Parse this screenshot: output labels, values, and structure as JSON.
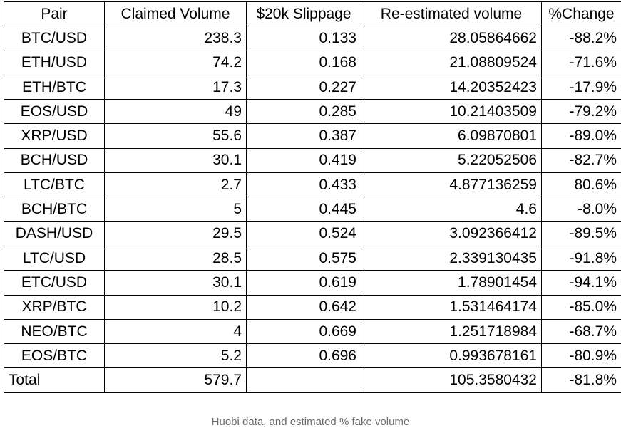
{
  "table": {
    "headers": [
      "Pair",
      "Claimed Volume",
      "$20k Slippage",
      "Re-estimated volume",
      "%Change"
    ],
    "rows": [
      {
        "pair": "BTC/USD",
        "claimed": "238.3",
        "slippage": "0.133",
        "reestimated": "28.05864662",
        "change": "-88.2%",
        "change_sign": "neg"
      },
      {
        "pair": "ETH/USD",
        "claimed": "74.2",
        "slippage": "0.168",
        "reestimated": "21.08809524",
        "change": "-71.6%",
        "change_sign": "neg"
      },
      {
        "pair": "ETH/BTC",
        "claimed": "17.3",
        "slippage": "0.227",
        "reestimated": "14.20352423",
        "change": "-17.9%",
        "change_sign": "neg"
      },
      {
        "pair": "EOS/USD",
        "claimed": "49",
        "slippage": "0.285",
        "reestimated": "10.21403509",
        "change": "-79.2%",
        "change_sign": "neg"
      },
      {
        "pair": "XRP/USD",
        "claimed": "55.6",
        "slippage": "0.387",
        "reestimated": "6.09870801",
        "change": "-89.0%",
        "change_sign": "neg"
      },
      {
        "pair": "BCH/USD",
        "claimed": "30.1",
        "slippage": "0.419",
        "reestimated": "5.22052506",
        "change": "-82.7%",
        "change_sign": "neg"
      },
      {
        "pair": "LTC/BTC",
        "claimed": "2.7",
        "slippage": "0.433",
        "reestimated": "4.877136259",
        "change": "80.6%",
        "change_sign": "pos"
      },
      {
        "pair": "BCH/BTC",
        "claimed": "5",
        "slippage": "0.445",
        "reestimated": "4.6",
        "change": "-8.0%",
        "change_sign": "neg"
      },
      {
        "pair": "DASH/USD",
        "claimed": "29.5",
        "slippage": "0.524",
        "reestimated": "3.092366412",
        "change": "-89.5%",
        "change_sign": "neg"
      },
      {
        "pair": "LTC/USD",
        "claimed": "28.5",
        "slippage": "0.575",
        "reestimated": "2.339130435",
        "change": "-91.8%",
        "change_sign": "neg"
      },
      {
        "pair": "ETC/USD",
        "claimed": "30.1",
        "slippage": "0.619",
        "reestimated": "1.78901454",
        "change": "-94.1%",
        "change_sign": "neg"
      },
      {
        "pair": "XRP/BTC",
        "claimed": "10.2",
        "slippage": "0.642",
        "reestimated": "1.531464174",
        "change": "-85.0%",
        "change_sign": "neg"
      },
      {
        "pair": "NEO/BTC",
        "claimed": "4",
        "slippage": "0.669",
        "reestimated": "1.251718984",
        "change": "-68.7%",
        "change_sign": "neg"
      },
      {
        "pair": "EOS/BTC",
        "claimed": "5.2",
        "slippage": "0.696",
        "reestimated": "0.993678161",
        "change": "-80.9%",
        "change_sign": "neg"
      }
    ],
    "total": {
      "label": "Total",
      "claimed": "579.7",
      "slippage": "",
      "reestimated": "105.3580432",
      "change": "-81.8%",
      "change_sign": "neg"
    }
  },
  "caption": "Huobi data, and estimated % fake volume",
  "colors": {
    "negative": "#ff0000",
    "positive": "#00b050",
    "caption": "#6b6b6b"
  }
}
